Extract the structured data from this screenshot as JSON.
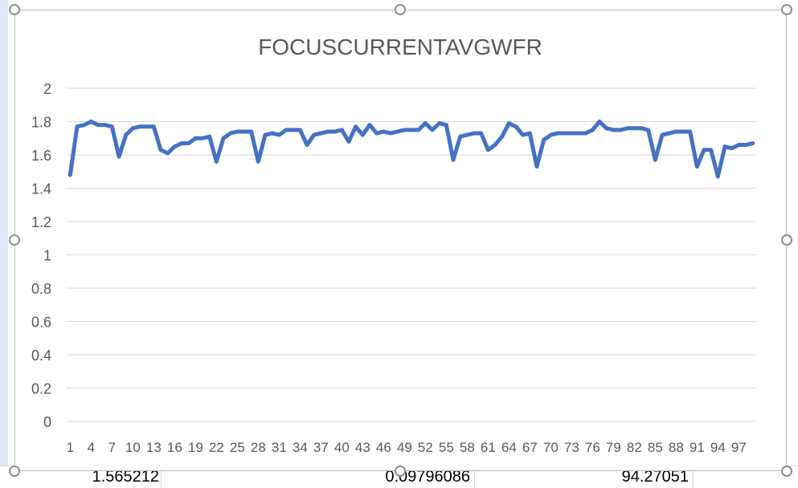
{
  "spreadsheet": {
    "visible_row": [
      "1.565212",
      "0.09796086",
      "94.27051"
    ]
  },
  "chart_data": {
    "type": "line",
    "title": "FOCUSCURRENTAVGWFR",
    "xlabel": "",
    "ylabel": "",
    "ylim": [
      0,
      2
    ],
    "y_ticks": [
      "0",
      "0.2",
      "0.4",
      "0.6",
      "0.8",
      "1",
      "1.2",
      "1.4",
      "1.6",
      "1.8",
      "2"
    ],
    "x_tick_labels": [
      "1",
      "4",
      "7",
      "10",
      "13",
      "16",
      "19",
      "22",
      "25",
      "28",
      "31",
      "34",
      "37",
      "40",
      "43",
      "46",
      "49",
      "52",
      "55",
      "58",
      "61",
      "64",
      "67",
      "70",
      "73",
      "76",
      "79",
      "82",
      "85",
      "88",
      "91",
      "94",
      "97"
    ],
    "x": [
      1,
      2,
      3,
      4,
      5,
      6,
      7,
      8,
      9,
      10,
      11,
      12,
      13,
      14,
      15,
      16,
      17,
      18,
      19,
      20,
      21,
      22,
      23,
      24,
      25,
      26,
      27,
      28,
      29,
      30,
      31,
      32,
      33,
      34,
      35,
      36,
      37,
      38,
      39,
      40,
      41,
      42,
      43,
      44,
      45,
      46,
      47,
      48,
      49,
      50,
      51,
      52,
      53,
      54,
      55,
      56,
      57,
      58,
      59,
      60,
      61,
      62,
      63,
      64,
      65,
      66,
      67,
      68,
      69,
      70,
      71,
      72,
      73,
      74,
      75,
      76,
      77,
      78,
      79,
      80,
      81,
      82,
      83,
      84,
      85,
      86,
      87,
      88,
      89,
      90,
      91,
      92,
      93,
      94,
      95,
      96,
      97,
      98,
      99
    ],
    "series": [
      {
        "color": "#4472c4",
        "values": [
          1.48,
          1.77,
          1.78,
          1.8,
          1.78,
          1.78,
          1.77,
          1.59,
          1.72,
          1.76,
          1.77,
          1.77,
          1.77,
          1.63,
          1.61,
          1.65,
          1.67,
          1.67,
          1.7,
          1.7,
          1.71,
          1.56,
          1.7,
          1.73,
          1.74,
          1.74,
          1.74,
          1.56,
          1.72,
          1.73,
          1.72,
          1.75,
          1.75,
          1.75,
          1.66,
          1.72,
          1.73,
          1.74,
          1.74,
          1.75,
          1.68,
          1.77,
          1.72,
          1.78,
          1.73,
          1.74,
          1.73,
          1.74,
          1.75,
          1.75,
          1.75,
          1.79,
          1.75,
          1.79,
          1.78,
          1.57,
          1.71,
          1.72,
          1.73,
          1.73,
          1.63,
          1.66,
          1.71,
          1.79,
          1.77,
          1.72,
          1.73,
          1.53,
          1.69,
          1.72,
          1.73,
          1.73,
          1.73,
          1.73,
          1.73,
          1.75,
          1.8,
          1.76,
          1.75,
          1.75,
          1.76,
          1.76,
          1.76,
          1.75,
          1.57,
          1.72,
          1.73,
          1.74,
          1.74,
          1.74,
          1.53,
          1.63,
          1.63,
          1.47,
          1.65,
          1.64,
          1.66,
          1.66,
          1.67
        ]
      }
    ],
    "grid": true,
    "legend": "none"
  }
}
